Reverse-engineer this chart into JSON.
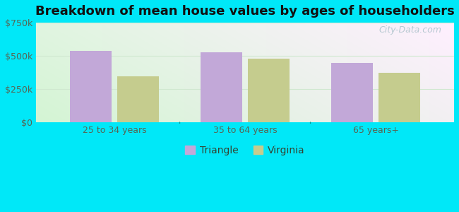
{
  "title": "Breakdown of mean house values by ages of householders",
  "categories": [
    "25 to 34 years",
    "35 to 64 years",
    "65 years+"
  ],
  "triangle_values": [
    540000,
    525000,
    445000
  ],
  "virginia_values": [
    345000,
    480000,
    370000
  ],
  "triangle_color": "#c2a8d8",
  "virginia_color": "#c5cc8e",
  "background_outer": "#00e8f8",
  "ylim": [
    0,
    750000
  ],
  "yticks": [
    0,
    250000,
    500000,
    750000
  ],
  "ytick_labels": [
    "$0",
    "$250k",
    "$500k",
    "$750k"
  ],
  "legend_labels": [
    "Triangle",
    "Virginia"
  ],
  "bar_width": 0.32,
  "title_fontsize": 13,
  "tick_fontsize": 9,
  "legend_fontsize": 10,
  "watermark_text": "City-Data.com",
  "watermark_color": "#9ab8c0",
  "watermark_alpha": 0.7
}
